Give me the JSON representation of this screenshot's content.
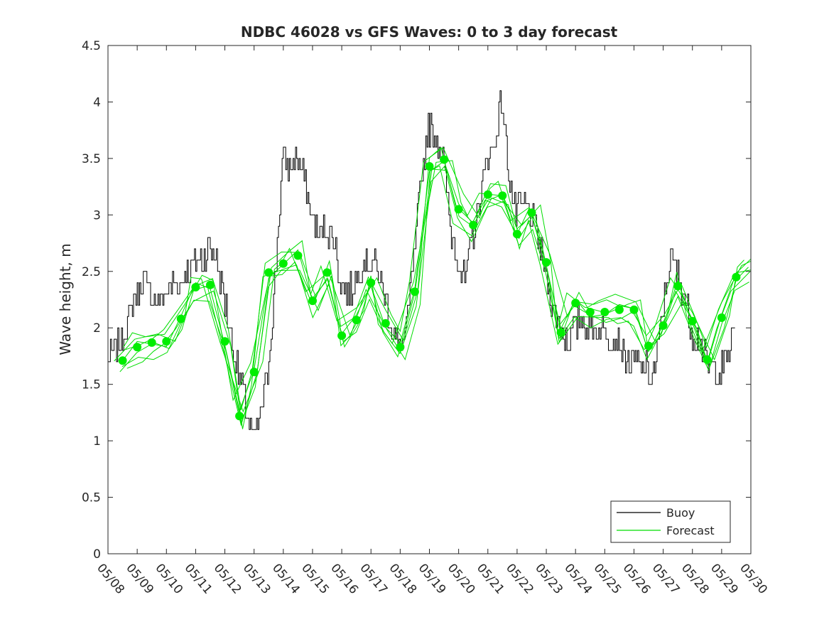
{
  "chart_data": {
    "type": "line",
    "title": "NDBC 46028 vs GFS Waves: 0 to 3 day forecast",
    "xlabel": "",
    "ylabel": "Wave height, m",
    "x_axis": {
      "unit": "day",
      "range": [
        "05/08",
        "05/30"
      ],
      "tick_labels": [
        "05/08",
        "05/09",
        "05/10",
        "05/11",
        "05/12",
        "05/13",
        "05/14",
        "05/15",
        "05/16",
        "05/17",
        "05/18",
        "05/19",
        "05/20",
        "05/21",
        "05/22",
        "05/23",
        "05/24",
        "05/25",
        "05/26",
        "05/27",
        "05/28",
        "05/29",
        "05/30"
      ]
    },
    "y_axis": {
      "range": [
        0,
        4.5
      ],
      "ticks": [
        0,
        0.5,
        1,
        1.5,
        2,
        2.5,
        3,
        3.5,
        4,
        4.5
      ],
      "tick_labels": [
        "0",
        "0.5",
        "1",
        "1.5",
        "2",
        "2.5",
        "3",
        "3.5",
        "4",
        "4.5"
      ]
    },
    "grid": false,
    "legend": {
      "position": "bottom-right",
      "entries": [
        "Buoy",
        "Forecast"
      ]
    },
    "colors": {
      "buoy": "#000000",
      "forecast": "#00dd00",
      "forecast_marker": "#00ee00",
      "axis": "#262626"
    },
    "series": [
      {
        "name": "Buoy",
        "x": [
          "05/08 00:00",
          "05/08 06:00",
          "05/08 12:00",
          "05/08 18:00",
          "05/09 00:00",
          "05/09 06:00",
          "05/09 12:00",
          "05/09 18:00",
          "05/10 00:00",
          "05/10 06:00",
          "05/10 12:00",
          "05/10 18:00",
          "05/11 00:00",
          "05/11 06:00",
          "05/11 12:00",
          "05/11 18:00",
          "05/12 00:00",
          "05/12 06:00",
          "05/12 12:00",
          "05/12 18:00",
          "05/13 00:00",
          "05/13 06:00",
          "05/13 12:00",
          "05/13 18:00",
          "05/14 00:00",
          "05/14 06:00",
          "05/14 12:00",
          "05/14 18:00",
          "05/15 00:00",
          "05/15 06:00",
          "05/15 12:00",
          "05/15 18:00",
          "05/16 00:00",
          "05/16 06:00",
          "05/16 12:00",
          "05/16 18:00",
          "05/17 00:00",
          "05/17 06:00",
          "05/17 12:00",
          "05/17 18:00",
          "05/18 00:00",
          "05/18 06:00",
          "05/18 12:00",
          "05/18 18:00",
          "05/19 00:00",
          "05/19 06:00",
          "05/19 12:00",
          "05/19 18:00",
          "05/20 00:00",
          "05/20 06:00",
          "05/20 12:00",
          "05/20 18:00",
          "05/21 00:00",
          "05/21 06:00",
          "05/21 12:00",
          "05/21 18:00",
          "05/22 00:00",
          "05/22 06:00",
          "05/22 12:00",
          "05/22 18:00",
          "05/23 00:00",
          "05/23 06:00",
          "05/23 12:00",
          "05/23 18:00",
          "05/24 00:00",
          "05/24 06:00",
          "05/24 12:00",
          "05/24 18:00",
          "05/25 00:00",
          "05/25 06:00",
          "05/25 12:00",
          "05/25 18:00",
          "05/26 00:00",
          "05/26 06:00",
          "05/26 12:00",
          "05/26 18:00",
          "05/27 00:00",
          "05/27 06:00",
          "05/27 12:00",
          "05/27 18:00",
          "05/28 00:00",
          "05/28 06:00",
          "05/28 12:00",
          "05/28 18:00",
          "05/29 00:00",
          "05/29 06:00",
          "05/29 12:00"
        ],
        "values": [
          1.7,
          1.8,
          1.9,
          2.1,
          2.3,
          2.4,
          2.3,
          2.2,
          2.3,
          2.4,
          2.4,
          2.5,
          2.6,
          2.6,
          2.7,
          2.6,
          2.3,
          1.9,
          1.6,
          1.3,
          1.0,
          1.2,
          1.6,
          2.4,
          3.5,
          3.4,
          3.5,
          3.3,
          3.0,
          2.8,
          2.9,
          2.8,
          2.4,
          2.3,
          2.4,
          2.6,
          2.6,
          2.5,
          2.3,
          2.0,
          1.8,
          2.0,
          2.6,
          3.3,
          3.8,
          3.7,
          3.5,
          2.9,
          2.6,
          2.4,
          2.8,
          3.1,
          3.5,
          3.6,
          4.0,
          3.4,
          3.0,
          3.1,
          3.0,
          2.8,
          2.5,
          2.2,
          2.0,
          1.9,
          2.0,
          2.1,
          2.0,
          2.0,
          2.0,
          1.9,
          1.9,
          1.7,
          1.7,
          1.7,
          1.6,
          1.6,
          2.1,
          2.6,
          2.5,
          2.3,
          2.0,
          1.9,
          1.7,
          1.6,
          1.6,
          1.8,
          2.0
        ]
      },
      {
        "name": "Forecast",
        "x": [
          "05/08 12:00",
          "05/09 00:00",
          "05/09 12:00",
          "05/10 00:00",
          "05/10 12:00",
          "05/11 00:00",
          "05/11 12:00",
          "05/12 00:00",
          "05/12 12:00",
          "05/13 00:00",
          "05/13 12:00",
          "05/14 00:00",
          "05/14 12:00",
          "05/15 00:00",
          "05/15 12:00",
          "05/16 00:00",
          "05/16 12:00",
          "05/17 00:00",
          "05/17 12:00",
          "05/18 00:00",
          "05/18 12:00",
          "05/19 00:00",
          "05/19 12:00",
          "05/20 00:00",
          "05/20 12:00",
          "05/21 00:00",
          "05/21 12:00",
          "05/22 00:00",
          "05/22 12:00",
          "05/23 00:00",
          "05/23 12:00",
          "05/24 00:00",
          "05/24 12:00",
          "05/25 00:00",
          "05/25 12:00",
          "05/26 00:00",
          "05/26 12:00",
          "05/27 00:00",
          "05/27 12:00",
          "05/28 00:00",
          "05/28 12:00",
          "05/29 00:00",
          "05/29 12:00",
          "05/30 00:00"
        ],
        "values": [
          1.71,
          1.83,
          1.87,
          1.88,
          2.08,
          2.36,
          2.38,
          1.88,
          1.22,
          1.61,
          2.49,
          2.57,
          2.64,
          2.24,
          2.49,
          1.93,
          2.07,
          2.4,
          2.04,
          1.83,
          2.32,
          3.43,
          3.49,
          3.05,
          2.91,
          3.18,
          3.17,
          2.83,
          3.02,
          2.58,
          1.96,
          2.22,
          2.14,
          2.14,
          2.16,
          2.16,
          1.84,
          2.02,
          2.37,
          2.06,
          1.72,
          2.09,
          2.45,
          2.55
        ]
      }
    ]
  }
}
